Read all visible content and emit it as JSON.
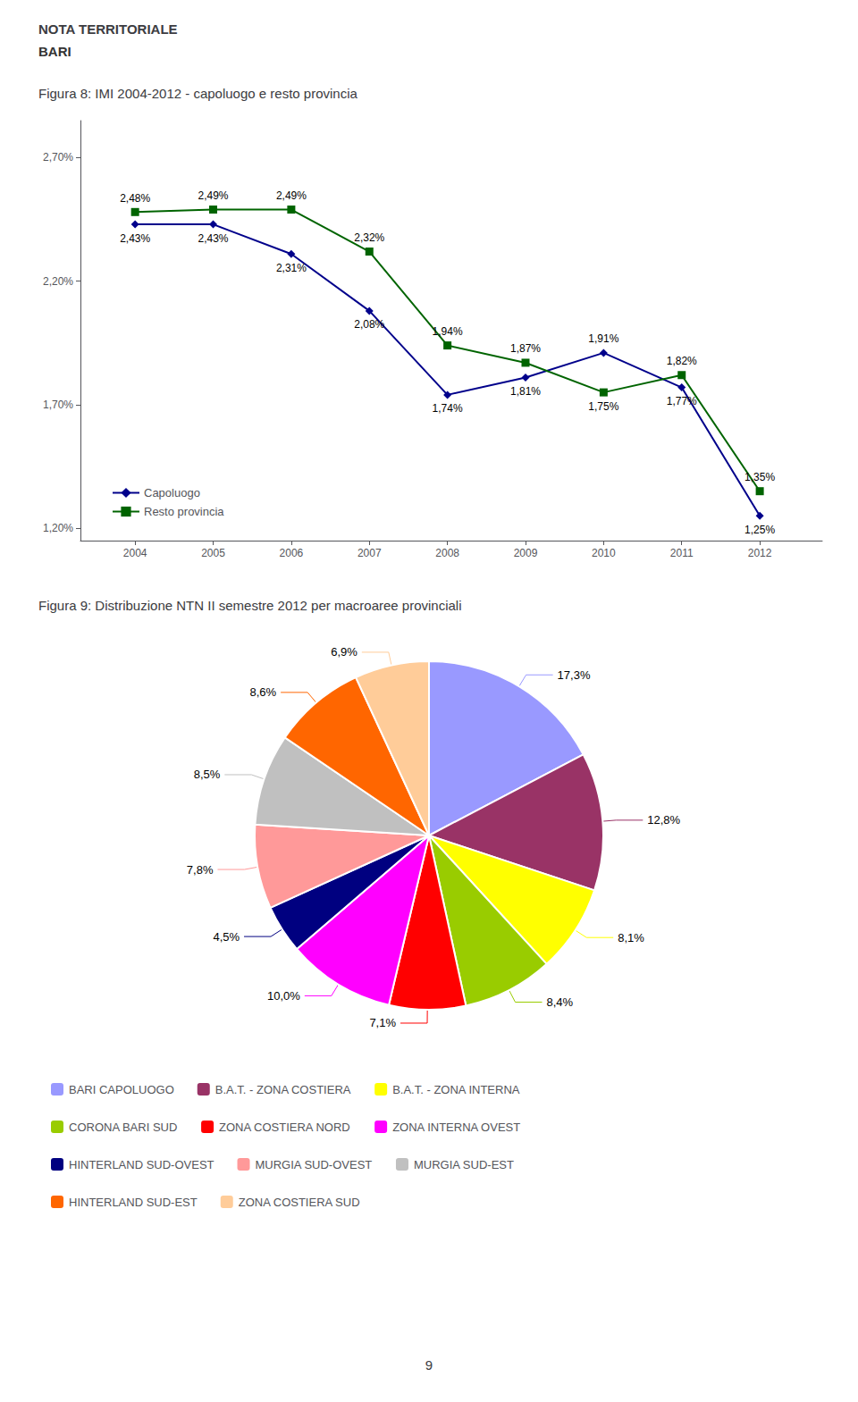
{
  "title": "NOTA TERRITORIALE",
  "subtitle": "BARI",
  "annotations": [
    "9"
  ],
  "chart_data": [
    {
      "type": "line",
      "title": "Figura 8: IMI 2004-2012 - capoluogo e resto provincia",
      "x": [
        2004,
        2005,
        2006,
        2007,
        2008,
        2009,
        2010,
        2011,
        2012
      ],
      "xlim": [
        2003.3,
        2012.8
      ],
      "xticks": [
        2004,
        2005,
        2006,
        2007,
        2008,
        2009,
        2010,
        2011,
        2012
      ],
      "ylim": [
        1.15,
        2.85
      ],
      "yticks": [
        {
          "value": 1.2,
          "label": "1,20%"
        },
        {
          "value": 1.7,
          "label": "1,70%"
        },
        {
          "value": 2.2,
          "label": "2,20%"
        },
        {
          "value": 2.7,
          "label": "2,70%"
        }
      ],
      "grid": false,
      "legend": "lower left",
      "data_labels": true,
      "series": [
        {
          "name": "Capoluogo",
          "color": "#00008B",
          "marker": "diamond",
          "values": [
            2.43,
            2.43,
            2.31,
            2.08,
            1.74,
            1.81,
            1.91,
            1.77,
            1.25
          ],
          "value_labels": [
            "2,43%",
            "2,43%",
            "2,31%",
            "2,08%",
            "1,74%",
            "1,81%",
            "1,91%",
            "1,77%",
            "1,25%"
          ]
        },
        {
          "name": "Resto provincia",
          "color": "#006400",
          "marker": "square",
          "values": [
            2.48,
            2.49,
            2.49,
            2.32,
            1.94,
            1.87,
            1.75,
            1.82,
            1.35
          ],
          "value_labels": [
            "2,48%",
            "2,49%",
            "2,49%",
            "2,32%",
            "1,94%",
            "1,87%",
            "1,75%",
            "1,82%",
            "1,35%"
          ]
        }
      ]
    },
    {
      "type": "pie",
      "title": "Figura 9: Distribuzione NTN II semestre 2012 per macroaree provinciali",
      "categories": [
        "BARI CAPOLUOGO",
        "B.A.T. - ZONA COSTIERA",
        "B.A.T. - ZONA INTERNA",
        "CORONA BARI SUD",
        "ZONA COSTIERA NORD",
        "ZONA INTERNA OVEST",
        "HINTERLAND SUD-OVEST",
        "MURGIA SUD-OVEST",
        "MURGIA SUD-EST",
        "HINTERLAND SUD-EST",
        "ZONA COSTIERA SUD"
      ],
      "values": [
        17.3,
        12.8,
        8.1,
        8.4,
        7.1,
        10.0,
        4.5,
        7.8,
        8.5,
        8.6,
        6.9
      ],
      "value_labels": [
        "17,3%",
        "12,8%",
        "8,1%",
        "8,4%",
        "7,1%",
        "10,0%",
        "4,5%",
        "7,8%",
        "8,5%",
        "8,6%",
        "6,9%"
      ],
      "colors": [
        "#9999FF",
        "#993366",
        "#FFFF00",
        "#99CC00",
        "#FF0000",
        "#FF00FF",
        "#000080",
        "#FF9999",
        "#C0C0C0",
        "#FF6600",
        "#FFCC99"
      ],
      "data_labels": true,
      "legend": "bottom"
    }
  ]
}
